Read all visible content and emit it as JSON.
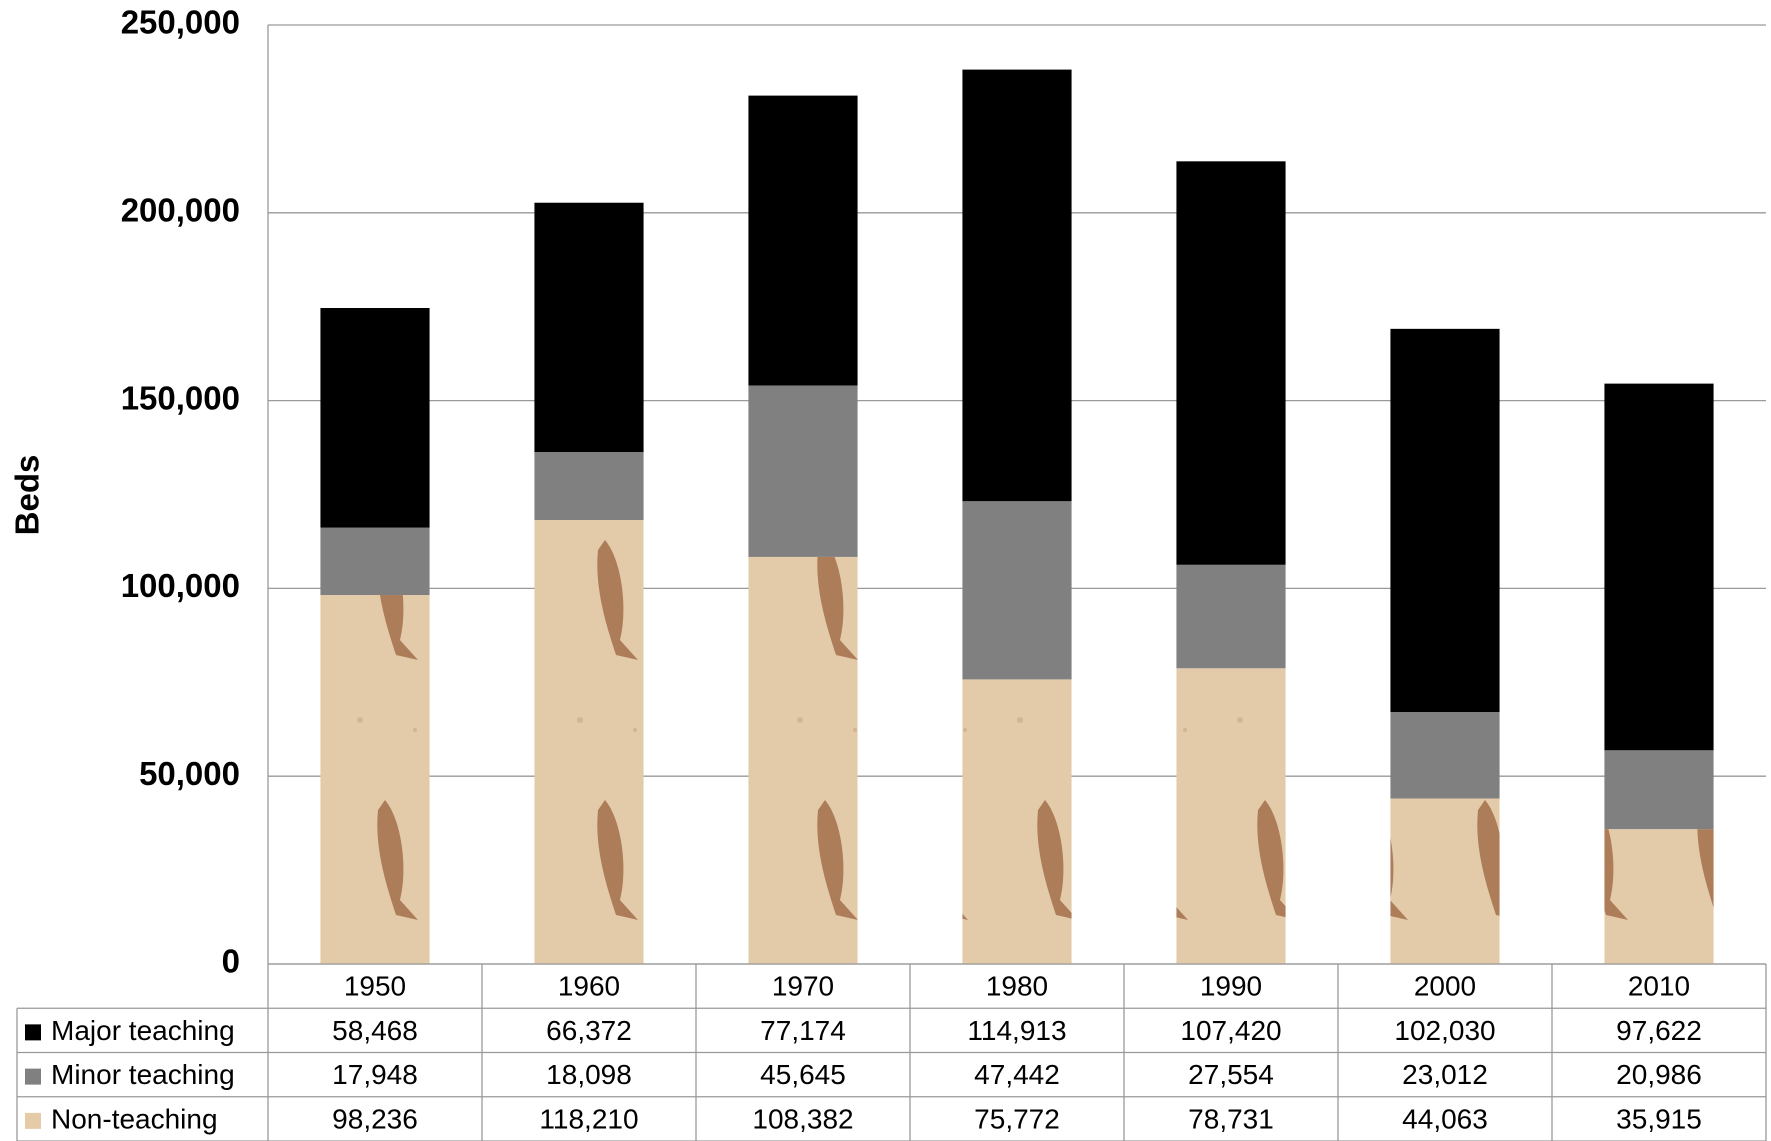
{
  "chart_data": {
    "type": "stacked_bar",
    "y_label": "Beds",
    "categories": [
      "1950",
      "1960",
      "1970",
      "1980",
      "1990",
      "2000",
      "2010"
    ],
    "series": [
      {
        "name": "Major teaching",
        "color": "#000000",
        "values": [
          58468,
          66372,
          77174,
          114913,
          107420,
          102030,
          97622
        ],
        "value_labels": [
          "58,468",
          "66,372",
          "77,174",
          "114,913",
          "107,420",
          "102,030",
          "97,622"
        ]
      },
      {
        "name": "Minor teaching",
        "color": "#808080",
        "values": [
          17948,
          18098,
          45645,
          47442,
          27554,
          23012,
          20986
        ],
        "value_labels": [
          "17,948",
          "18,098",
          "45,645",
          "47,442",
          "27,554",
          "23,012",
          "20,986"
        ]
      },
      {
        "name": "Non-teaching",
        "color": "#e6cba8",
        "values": [
          98236,
          118210,
          108382,
          75772,
          78731,
          44063,
          35915
        ],
        "value_labels": [
          "98,236",
          "118,210",
          "108,382",
          "75,772",
          "78,731",
          "44,063",
          "35,915"
        ]
      }
    ],
    "ylim": [
      0,
      250000
    ],
    "yticks": [
      0,
      {
        "value": 50000,
        "label": "50,000"
      },
      {
        "value": 100000,
        "label": "100,000"
      },
      {
        "value": 150000,
        "label": "150,000"
      },
      {
        "value": 200000,
        "label": "200,000"
      },
      {
        "value": 250000,
        "label": "250,000"
      }
    ],
    "grid": true
  }
}
